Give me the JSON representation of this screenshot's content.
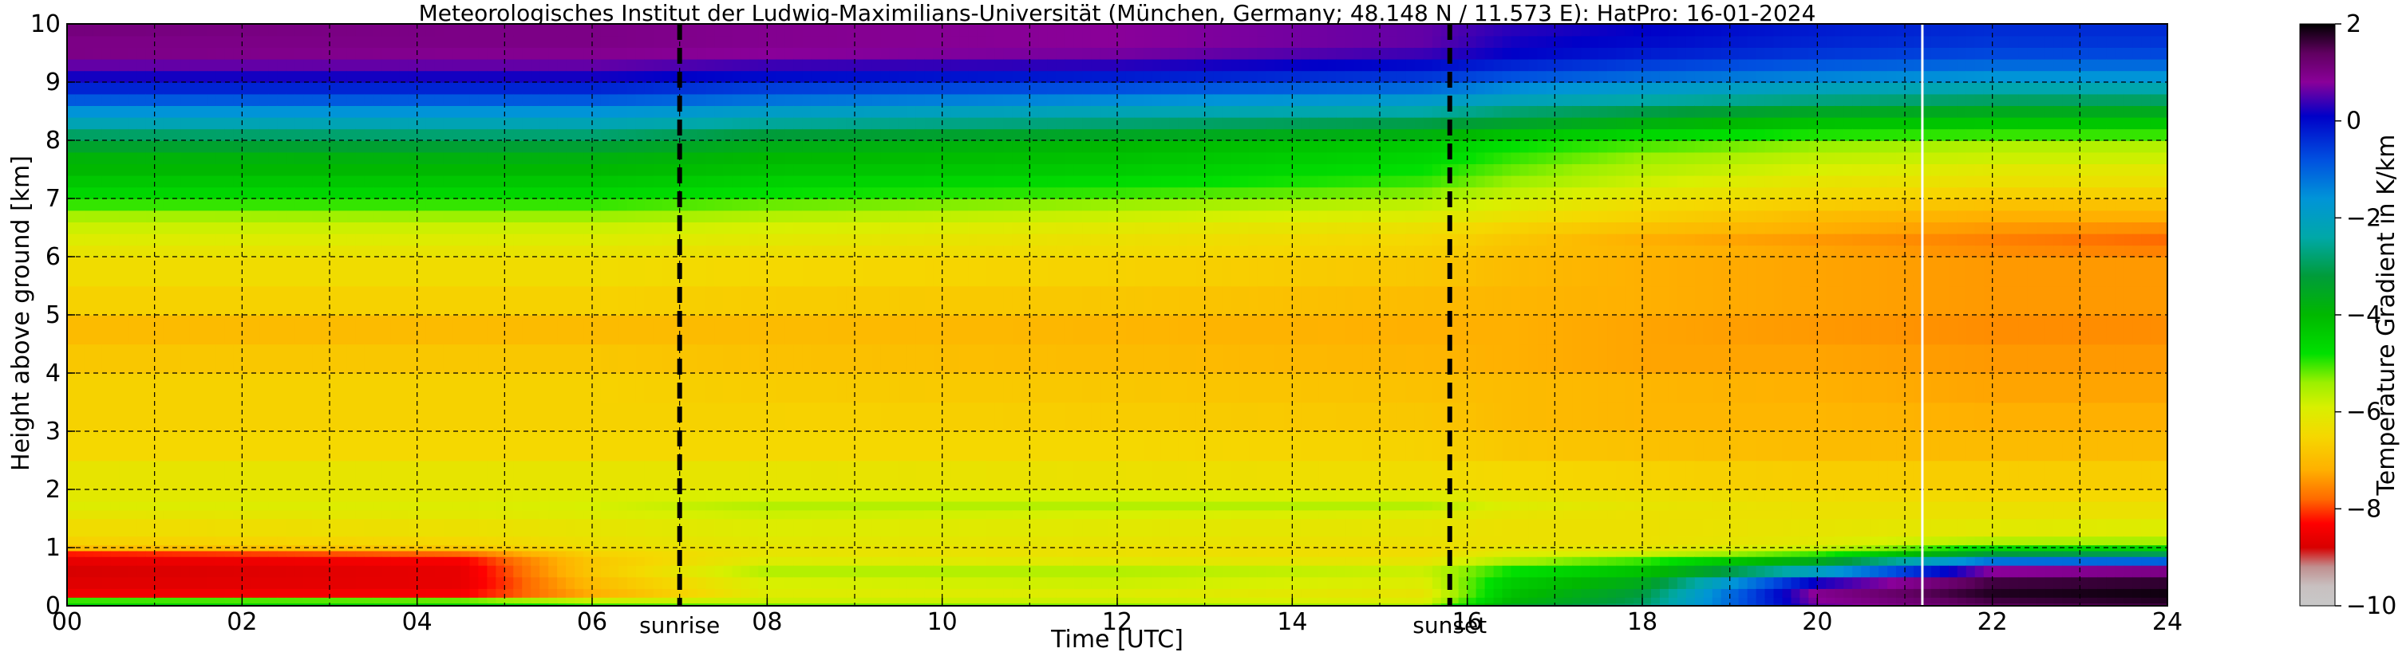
{
  "chart_data": {
    "type": "heatmap",
    "title": "Meteorologisches Institut der Ludwig-Maximilians-Universität (München, Germany; 48.148 N / 11.573 E):    HatPro: 16-01-2024",
    "xlabel": "Time [UTC]",
    "ylabel": "Height above ground [km]",
    "xlim": [
      0,
      24
    ],
    "ylim": [
      0,
      10
    ],
    "x_ticks": [
      0,
      2,
      4,
      6,
      8,
      10,
      12,
      14,
      16,
      18,
      20,
      22,
      24
    ],
    "x_tick_labels": [
      "00",
      "02",
      "04",
      "06",
      "08",
      "10",
      "12",
      "14",
      "16",
      "18",
      "20",
      "22",
      "24"
    ],
    "y_ticks": [
      0,
      1,
      2,
      3,
      4,
      5,
      6,
      7,
      8,
      9,
      10
    ],
    "y_tick_labels": [
      "0",
      "1",
      "2",
      "3",
      "4",
      "5",
      "6",
      "7",
      "8",
      "9",
      "10"
    ],
    "grid": true,
    "colorbar": {
      "label": "Temperature Gradient in K/km",
      "min": -10,
      "max": 2,
      "ticks": [
        2,
        0,
        -2,
        -4,
        -6,
        -8,
        -10
      ],
      "tick_labels": [
        "2",
        "0",
        "−2",
        "−4",
        "−6",
        "−8",
        "−10"
      ],
      "color_stops": [
        {
          "value": 2,
          "color": "#000000"
        },
        {
          "value": 1.4,
          "color": "#600060"
        },
        {
          "value": 0.8,
          "color": "#8a0099"
        },
        {
          "value": 0.1,
          "color": "#0000c8"
        },
        {
          "value": -0.8,
          "color": "#0050e0"
        },
        {
          "value": -1.6,
          "color": "#0094d8"
        },
        {
          "value": -2.4,
          "color": "#00a8a8"
        },
        {
          "value": -3.2,
          "color": "#009c3a"
        },
        {
          "value": -4.0,
          "color": "#00b800"
        },
        {
          "value": -4.8,
          "color": "#00e000"
        },
        {
          "value": -5.4,
          "color": "#9cf000"
        },
        {
          "value": -5.9,
          "color": "#d8f000"
        },
        {
          "value": -6.5,
          "color": "#f5d800"
        },
        {
          "value": -7.2,
          "color": "#ffb000"
        },
        {
          "value": -7.8,
          "color": "#ff6a00"
        },
        {
          "value": -8.3,
          "color": "#ff0000"
        },
        {
          "value": -8.8,
          "color": "#d80000"
        },
        {
          "value": -9.2,
          "color": "#c09090"
        },
        {
          "value": -9.6,
          "color": "#c8c0c0"
        },
        {
          "value": -10,
          "color": "#c8c8c8"
        }
      ]
    },
    "annotations": [
      {
        "label": "sunrise",
        "x": 7.0
      },
      {
        "label": "sunset",
        "x": 15.8
      }
    ],
    "data_gap_line_x": 21.2,
    "grid_x_hours": 24,
    "grid_y_levels_km": 10,
    "profile_heights_km": [
      0,
      0.05,
      0.15,
      0.3,
      0.5,
      0.7,
      0.85,
      0.95,
      1.05,
      1.2,
      1.5,
      1.65,
      1.8,
      2.0,
      2.5,
      3.0,
      3.5,
      4.0,
      4.5,
      5.0,
      5.5,
      6.0,
      6.2,
      6.4,
      6.6,
      6.8,
      7.0,
      7.2,
      7.4,
      7.6,
      7.8,
      8.0,
      8.2,
      8.4,
      8.6,
      8.8,
      9.0,
      9.2,
      9.4,
      9.6,
      9.8,
      10.0
    ],
    "profiles": [
      {
        "time": 0,
        "values": [
          -4.5,
          -5.0,
          -8.5,
          -8.7,
          -8.8,
          -8.6,
          -8.2,
          -7.0,
          -6.6,
          -6.4,
          -6.2,
          -6.0,
          -6.1,
          -6.2,
          -6.5,
          -6.6,
          -6.6,
          -6.8,
          -7.0,
          -6.6,
          -6.4,
          -6.2,
          -6.0,
          -5.8,
          -5.5,
          -5.0,
          -4.6,
          -4.3,
          -4.0,
          -3.9,
          -3.4,
          -2.9,
          -2.2,
          -1.6,
          -0.9,
          -0.3,
          0.2,
          0.6,
          1.0,
          1.0,
          1.1,
          1.0
        ]
      },
      {
        "time": 4.5,
        "values": [
          -4.5,
          -5.2,
          -8.4,
          -8.6,
          -8.6,
          -8.4,
          -7.8,
          -6.8,
          -6.5,
          -6.3,
          -6.1,
          -6.0,
          -6.1,
          -6.2,
          -6.5,
          -6.6,
          -6.6,
          -6.8,
          -7.0,
          -6.6,
          -6.4,
          -6.2,
          -6.0,
          -5.8,
          -5.4,
          -5.0,
          -4.6,
          -4.3,
          -4.0,
          -3.8,
          -3.3,
          -2.8,
          -2.2,
          -1.6,
          -0.9,
          -0.3,
          0.2,
          0.6,
          0.9,
          1.0,
          1.0,
          1.0
        ]
      },
      {
        "time": 6.0,
        "values": [
          -5.0,
          -5.8,
          -7.2,
          -7.0,
          -6.8,
          -6.8,
          -6.6,
          -6.4,
          -6.3,
          -6.2,
          -6.0,
          -5.9,
          -6.0,
          -6.2,
          -6.5,
          -6.6,
          -6.6,
          -6.8,
          -7.0,
          -6.6,
          -6.4,
          -6.2,
          -6.0,
          -5.8,
          -5.4,
          -5.0,
          -4.6,
          -4.3,
          -4.0,
          -3.8,
          -3.3,
          -2.8,
          -2.2,
          -1.6,
          -0.9,
          -0.3,
          0.2,
          0.6,
          0.9,
          1.0,
          1.0,
          1.0
        ]
      },
      {
        "time": 8.0,
        "values": [
          -5.2,
          -5.8,
          -6.0,
          -5.9,
          -5.6,
          -6.0,
          -6.2,
          -6.2,
          -6.1,
          -6.0,
          -5.8,
          -5.6,
          -5.9,
          -6.2,
          -6.5,
          -6.6,
          -6.7,
          -6.9,
          -7.0,
          -6.7,
          -6.5,
          -6.3,
          -6.1,
          -5.9,
          -5.6,
          -5.2,
          -4.8,
          -4.5,
          -4.2,
          -4.0,
          -3.7,
          -3.2,
          -2.5,
          -1.9,
          -1.2,
          -0.6,
          0.0,
          0.4,
          0.8,
          0.9,
          0.9,
          0.9
        ]
      },
      {
        "time": 12.0,
        "values": [
          -5.3,
          -5.8,
          -6.0,
          -5.8,
          -5.6,
          -6.1,
          -6.3,
          -6.3,
          -6.2,
          -6.1,
          -5.9,
          -5.6,
          -5.9,
          -6.3,
          -6.5,
          -6.7,
          -6.8,
          -7.0,
          -7.1,
          -6.8,
          -6.6,
          -6.4,
          -6.3,
          -6.1,
          -5.8,
          -5.4,
          -5.0,
          -4.7,
          -4.4,
          -4.2,
          -4.0,
          -3.5,
          -2.8,
          -2.2,
          -1.5,
          -0.8,
          -0.2,
          0.3,
          0.7,
          0.8,
          0.8,
          0.8
        ]
      },
      {
        "time": 15.5,
        "values": [
          -5.5,
          -6.0,
          -6.2,
          -6.0,
          -5.8,
          -6.2,
          -6.4,
          -6.4,
          -6.3,
          -6.2,
          -6.0,
          -5.6,
          -6.0,
          -6.4,
          -6.6,
          -6.8,
          -6.9,
          -7.1,
          -7.2,
          -7.0,
          -6.8,
          -6.6,
          -6.5,
          -6.3,
          -6.0,
          -5.7,
          -5.3,
          -5.0,
          -4.8,
          -4.6,
          -4.4,
          -3.8,
          -3.1,
          -2.4,
          -1.8,
          -1.1,
          -0.5,
          0.0,
          0.4,
          0.6,
          0.6,
          0.6
        ]
      },
      {
        "time": 16.5,
        "values": [
          -3.5,
          -4.0,
          -4.2,
          -4.4,
          -4.8,
          -5.5,
          -6.0,
          -6.2,
          -6.3,
          -6.3,
          -6.2,
          -6.0,
          -6.2,
          -6.5,
          -6.8,
          -7.0,
          -7.0,
          -7.2,
          -7.2,
          -7.1,
          -7.0,
          -6.9,
          -6.8,
          -6.6,
          -6.3,
          -6.0,
          -5.7,
          -5.4,
          -5.2,
          -5.0,
          -4.8,
          -4.2,
          -3.4,
          -2.8,
          -2.1,
          -1.5,
          -0.8,
          -0.3,
          0.1,
          0.2,
          0.3,
          0.3
        ]
      },
      {
        "time": 18.0,
        "values": [
          -2.8,
          -3.0,
          -3.2,
          -3.6,
          -4.2,
          -5.0,
          -5.8,
          -6.2,
          -6.3,
          -6.3,
          -6.3,
          -6.2,
          -6.3,
          -6.6,
          -6.9,
          -7.1,
          -7.1,
          -7.3,
          -7.3,
          -7.2,
          -7.2,
          -7.1,
          -7.2,
          -6.9,
          -6.6,
          -6.4,
          -6.1,
          -5.8,
          -5.6,
          -5.4,
          -5.1,
          -4.6,
          -3.8,
          -3.1,
          -2.4,
          -1.8,
          -1.1,
          -0.6,
          -0.2,
          0.0,
          0.1,
          0.1
        ]
      },
      {
        "time": 20.0,
        "values": [
          0.6,
          0.8,
          0.9,
          0.2,
          -2.0,
          -3.6,
          -5.0,
          -5.8,
          -6.1,
          -6.2,
          -6.3,
          -6.3,
          -6.4,
          -6.7,
          -7.0,
          -7.1,
          -7.2,
          -7.3,
          -7.4,
          -7.3,
          -7.3,
          -7.3,
          -7.4,
          -7.2,
          -7.0,
          -6.7,
          -6.4,
          -6.2,
          -5.9,
          -5.7,
          -5.4,
          -4.9,
          -4.2,
          -3.5,
          -2.7,
          -2.1,
          -1.4,
          -0.9,
          -0.5,
          -0.3,
          -0.2,
          -0.2
        ]
      },
      {
        "time": 22.0,
        "values": [
          1.4,
          1.6,
          1.8,
          1.6,
          0.8,
          -1.2,
          -3.2,
          -4.6,
          -5.6,
          -6.1,
          -6.3,
          -6.3,
          -6.5,
          -6.7,
          -7.0,
          -7.2,
          -7.3,
          -7.4,
          -7.5,
          -7.4,
          -7.4,
          -7.5,
          -7.6,
          -7.4,
          -7.2,
          -6.9,
          -6.6,
          -6.3,
          -6.1,
          -5.8,
          -5.6,
          -5.0,
          -4.3,
          -3.6,
          -2.9,
          -2.3,
          -1.6,
          -1.1,
          -0.7,
          -0.5,
          -0.4,
          -0.4
        ]
      },
      {
        "time": 24.0,
        "values": [
          1.6,
          1.8,
          1.9,
          1.7,
          1.0,
          -1.0,
          -3.0,
          -4.5,
          -5.5,
          -6.0,
          -6.3,
          -6.3,
          -6.5,
          -6.7,
          -7.0,
          -7.2,
          -7.3,
          -7.4,
          -7.5,
          -7.4,
          -7.4,
          -7.6,
          -7.8,
          -7.5,
          -7.2,
          -6.9,
          -6.6,
          -6.3,
          -6.1,
          -5.8,
          -5.6,
          -5.0,
          -4.3,
          -3.6,
          -2.9,
          -2.3,
          -1.6,
          -1.1,
          -0.7,
          -0.5,
          -0.4,
          -0.4
        ]
      }
    ]
  }
}
